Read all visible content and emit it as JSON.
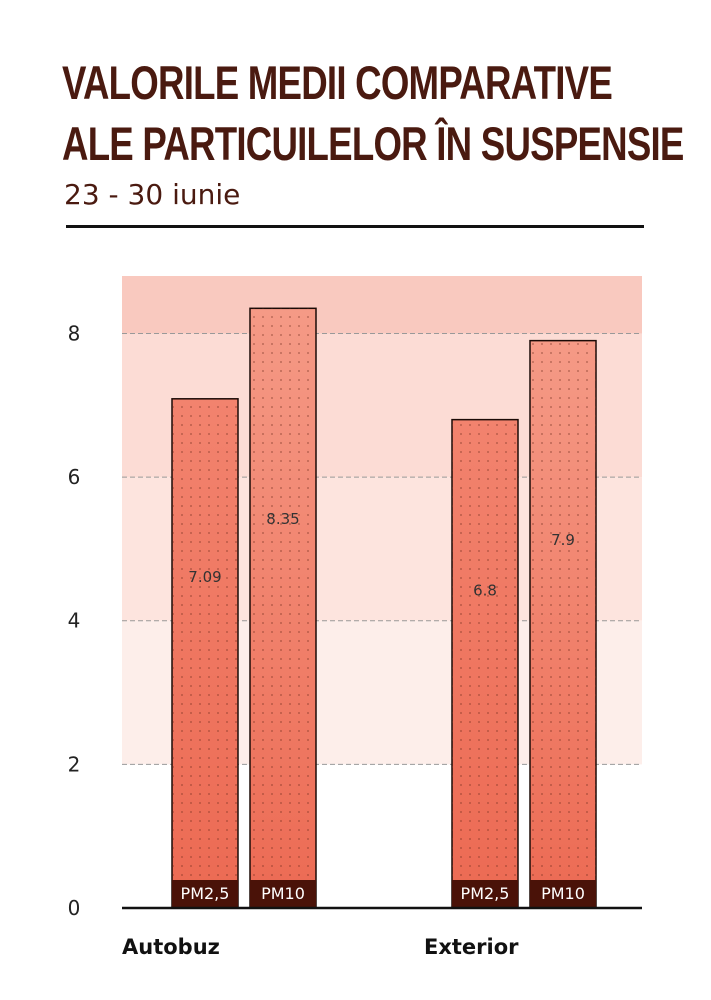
{
  "chart_data": {
    "type": "bar",
    "title_lines": [
      "VALORILE MEDII COMPARATIVE",
      "ALE PARTICUILELOR ÎN SUSPENSIE"
    ],
    "subtitle": "23 - 30 iunie",
    "categories": [
      "Autobuz",
      "Exterior"
    ],
    "series": [
      {
        "name": "PM2,5",
        "values": [
          7.09,
          6.8
        ]
      },
      {
        "name": "PM10",
        "values": [
          8.35,
          7.9
        ]
      }
    ],
    "ylim": [
      0,
      8.8
    ],
    "yticks": [
      "0",
      "2",
      "4",
      "6",
      "8"
    ],
    "grid": true,
    "legend": "none",
    "colors": {
      "title": "#4a1a10",
      "bar_pm25": "#f07a66",
      "bar_pm10": "#f28a74",
      "band_light": "#fdeeea",
      "band_mid": "#fcdcd5",
      "band_dark": "#f9c9bf",
      "series_label_bg": "#4a1208"
    }
  }
}
